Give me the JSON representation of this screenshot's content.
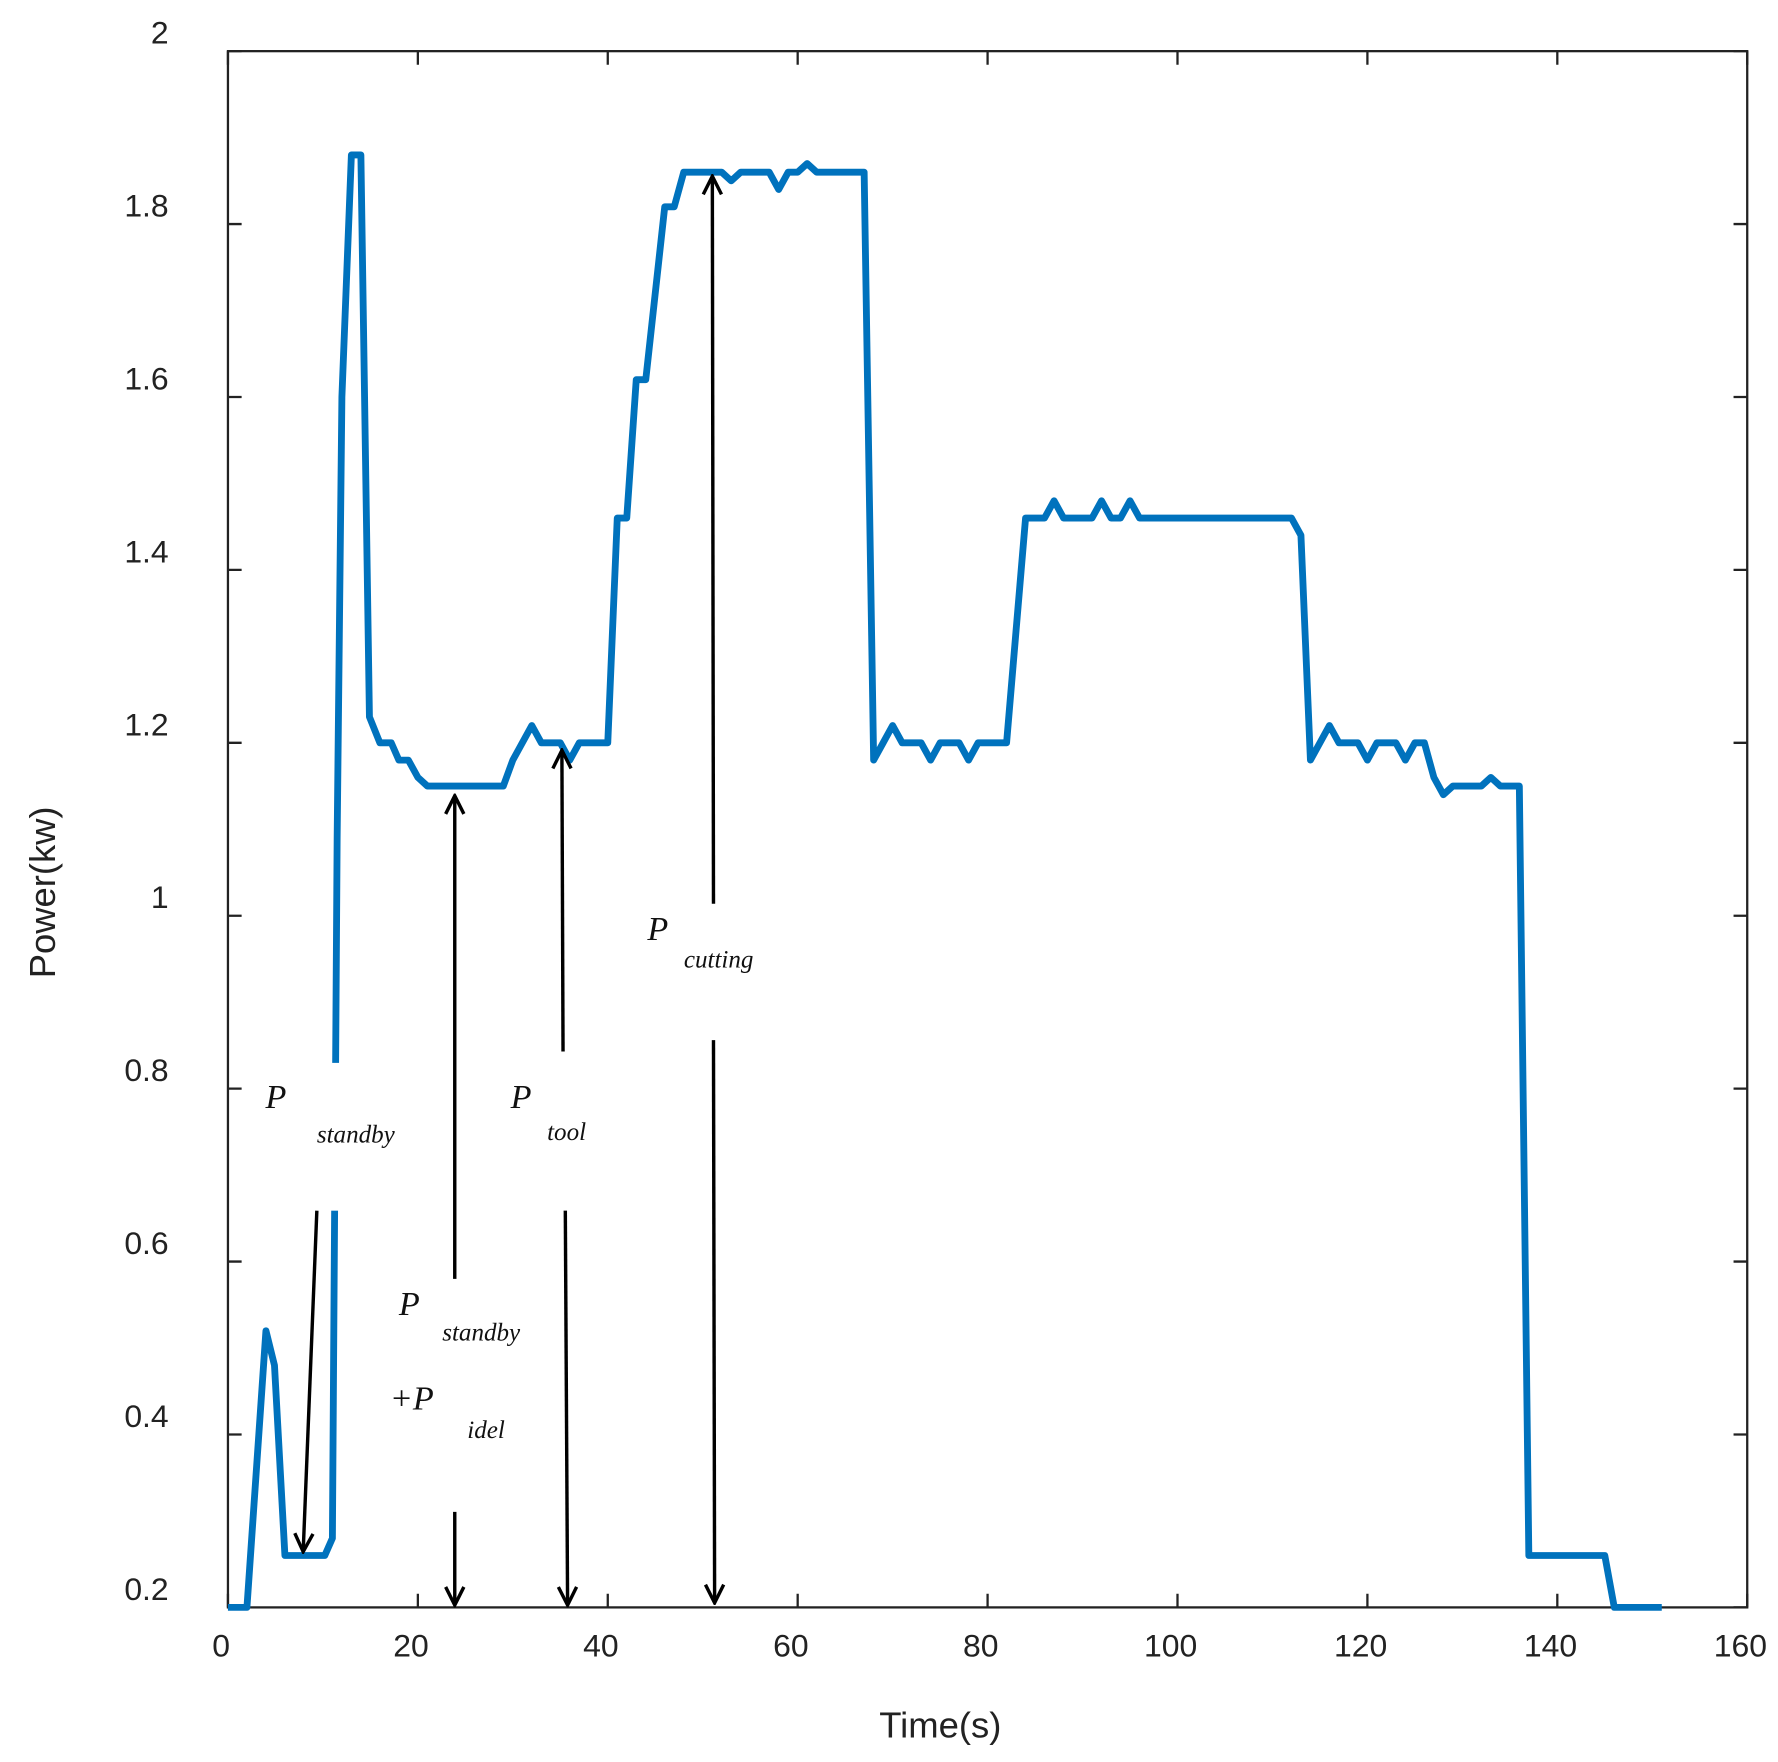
{
  "chart_data": {
    "type": "line",
    "xlabel": "Time(s)",
    "ylabel": "Power(kw)",
    "xlim": [
      0,
      160
    ],
    "xticks": [
      0,
      20,
      40,
      60,
      80,
      100,
      120,
      140,
      160
    ],
    "ylim": [
      0.2,
      2
    ],
    "yticks": [
      0.2,
      0.4,
      0.6,
      0.8,
      1,
      1.2,
      1.4,
      1.6,
      1.8,
      2
    ],
    "series": [
      {
        "color": "#0072bd",
        "x": [
          0,
          2,
          4,
          4.9,
          6,
          10.2,
          11,
          11.5,
          12,
          13,
          14,
          14.9,
          16,
          17.2,
          18,
          19,
          20,
          21,
          29,
          30,
          32,
          33,
          35,
          36,
          37,
          40,
          41,
          42,
          43,
          44,
          46,
          47,
          48,
          52,
          53,
          54,
          57,
          58,
          59,
          60,
          61,
          62,
          67,
          68,
          69,
          70,
          71,
          73,
          74,
          75,
          77,
          78,
          79,
          82,
          84,
          86,
          87,
          88,
          91,
          92,
          93,
          94,
          95,
          96,
          112,
          113,
          114,
          116,
          117,
          119,
          120,
          121,
          123,
          124,
          125,
          126,
          127,
          128,
          129,
          132,
          133,
          134,
          136,
          137,
          145,
          146,
          151
        ],
        "values": [
          0.2,
          0.2,
          0.52,
          0.48,
          0.26,
          0.26,
          0.28,
          1.09,
          1.6,
          1.88,
          1.88,
          1.23,
          1.2,
          1.2,
          1.18,
          1.18,
          1.16,
          1.15,
          1.15,
          1.18,
          1.22,
          1.2,
          1.2,
          1.18,
          1.2,
          1.2,
          1.46,
          1.46,
          1.62,
          1.62,
          1.82,
          1.82,
          1.86,
          1.86,
          1.85,
          1.86,
          1.86,
          1.84,
          1.86,
          1.86,
          1.87,
          1.86,
          1.86,
          1.18,
          1.2,
          1.22,
          1.2,
          1.2,
          1.18,
          1.2,
          1.2,
          1.18,
          1.2,
          1.2,
          1.46,
          1.46,
          1.48,
          1.46,
          1.46,
          1.48,
          1.46,
          1.46,
          1.48,
          1.46,
          1.46,
          1.44,
          1.18,
          1.22,
          1.2,
          1.2,
          1.18,
          1.2,
          1.2,
          1.18,
          1.2,
          1.2,
          1.16,
          1.14,
          1.15,
          1.15,
          1.16,
          1.15,
          1.15,
          0.26,
          0.26,
          0.2,
          0.2
        ]
      }
    ],
    "annotations": [
      {
        "text": "P",
        "subscript": "standby"
      },
      {
        "text": "P",
        "subscript": "tool"
      },
      {
        "text": "P",
        "subscript": "cutting"
      },
      {
        "text": "P",
        "subscript": "standby"
      },
      {
        "text": "+P",
        "subscript": "idel"
      }
    ]
  }
}
